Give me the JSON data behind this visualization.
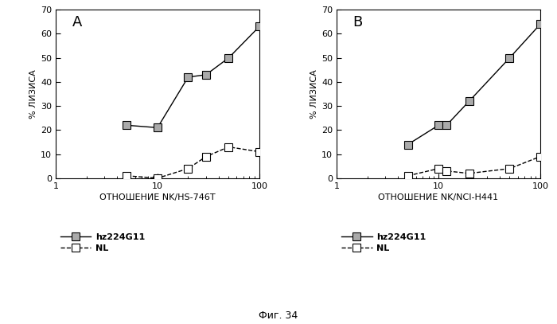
{
  "panel_A": {
    "label": "A",
    "xlabel": "ОТНОШЕНИЕ NK/HS-746T",
    "ylabel": "% ЛИЗИСА",
    "xlim": [
      1,
      100
    ],
    "ylim": [
      0,
      70
    ],
    "yticks": [
      0,
      10,
      20,
      30,
      40,
      50,
      60,
      70
    ],
    "series": {
      "hz224G11": {
        "x": [
          5,
          10,
          20,
          30,
          50,
          100
        ],
        "y": [
          22,
          21,
          42,
          43,
          50,
          63
        ],
        "filled": true,
        "label": "hz224G11"
      },
      "NL": {
        "x": [
          5,
          10,
          20,
          30,
          50,
          100
        ],
        "y": [
          1,
          0,
          4,
          9,
          13,
          11
        ],
        "filled": false,
        "label": "NL"
      }
    }
  },
  "panel_B": {
    "label": "B",
    "xlabel": "ОТНОШЕНИЕ NK/NCI-H441",
    "ylabel": "% ЛИЗИСА",
    "xlim": [
      1,
      100
    ],
    "ylim": [
      0,
      70
    ],
    "yticks": [
      0,
      10,
      20,
      30,
      40,
      50,
      60,
      70
    ],
    "series": {
      "hz224G11": {
        "x": [
          5,
          10,
          12,
          20,
          50,
          100
        ],
        "y": [
          14,
          22,
          22,
          32,
          50,
          64
        ],
        "filled": true,
        "label": "hz224G11"
      },
      "NL": {
        "x": [
          5,
          10,
          12,
          20,
          50,
          100
        ],
        "y": [
          1,
          4,
          3,
          2,
          4,
          9
        ],
        "filled": false,
        "label": "NL"
      }
    }
  },
  "figure_label": "Фиг. 34",
  "bg_color": "#ffffff",
  "line_color": "#000000",
  "marker_size": 7,
  "linewidth": 1.0,
  "font_size_label": 8,
  "font_size_tick": 8,
  "font_size_panel": 13,
  "font_size_legend": 8,
  "font_size_fig_label": 9
}
